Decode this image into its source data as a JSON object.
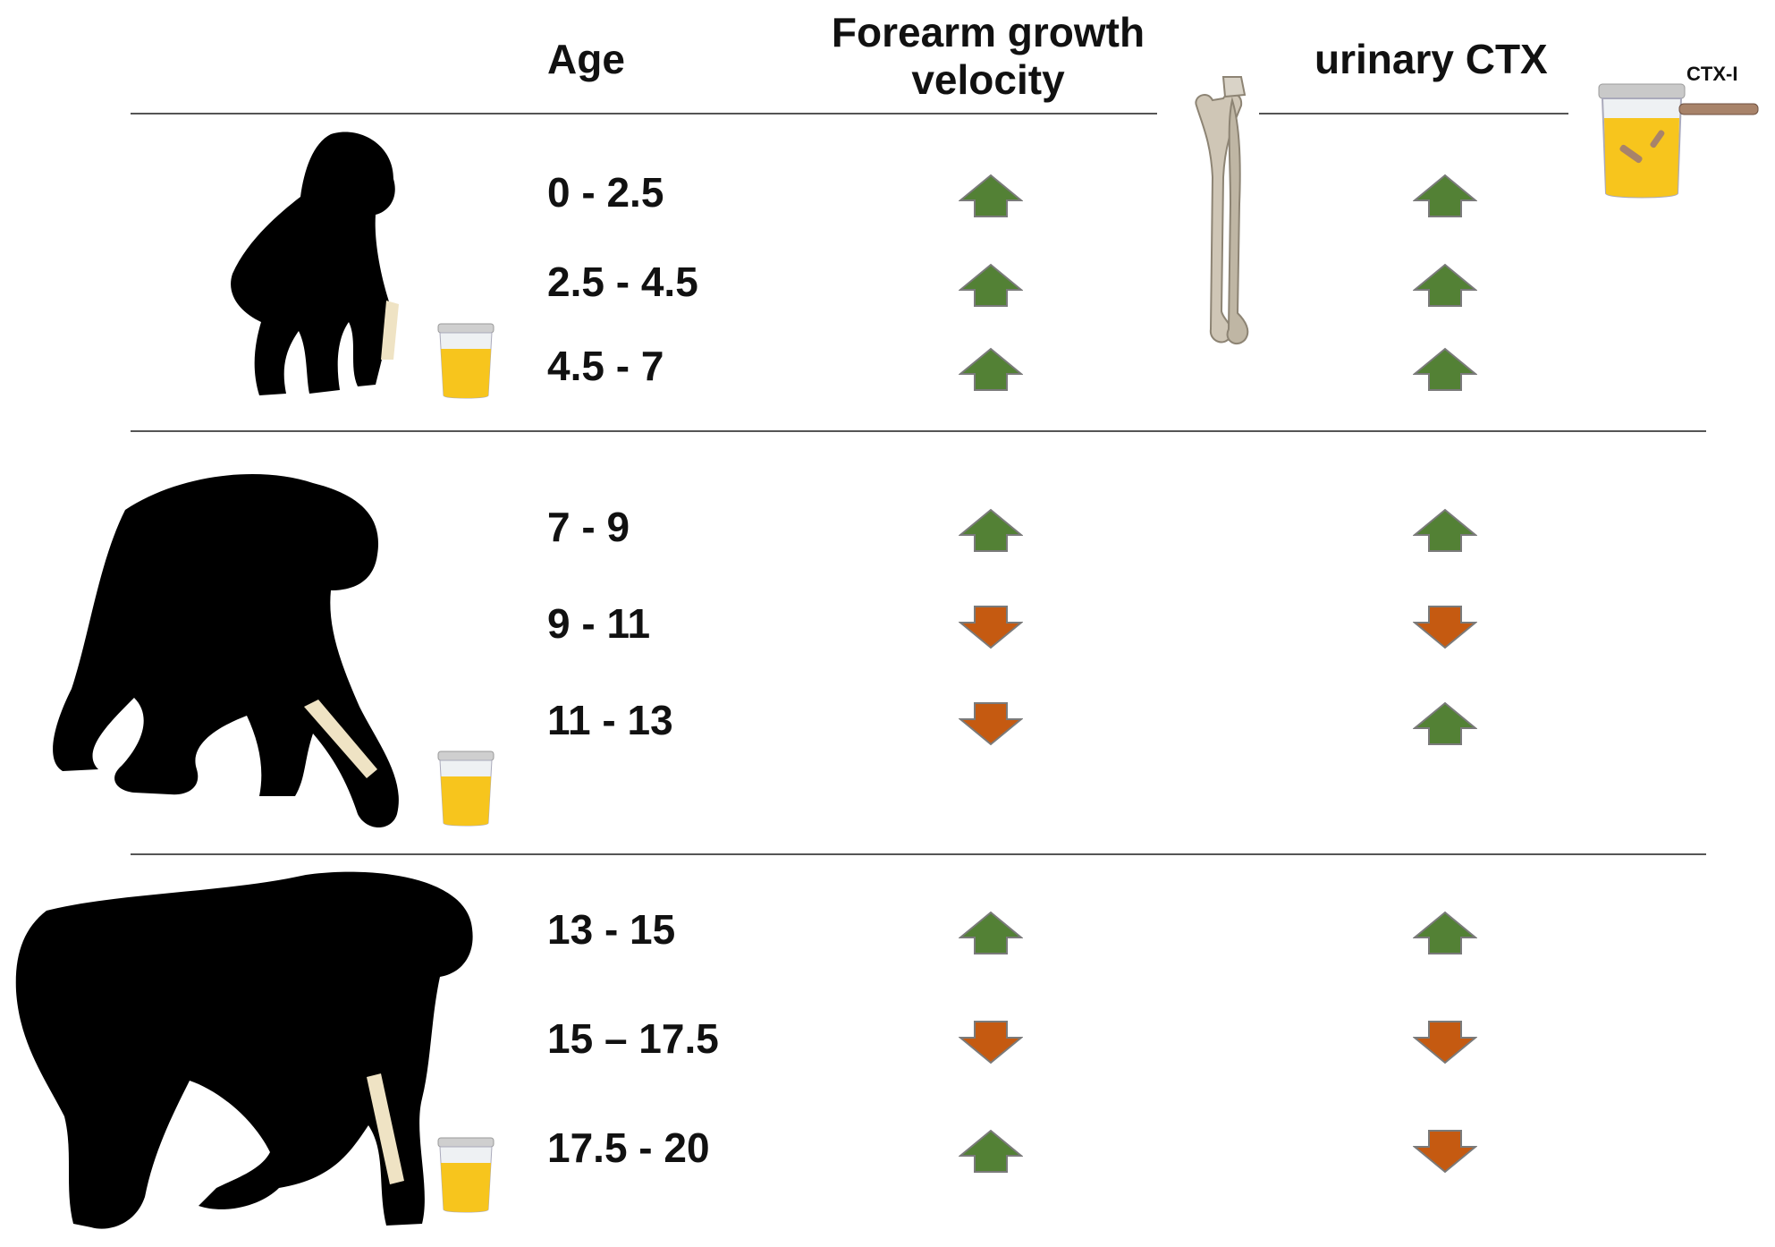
{
  "headers": {
    "age": "Age",
    "forearm_line1": "Forearm growth",
    "forearm_line2": "velocity",
    "ctx": "urinary CTX",
    "ctx_marker": "CTX-I"
  },
  "colors": {
    "up": "#538135",
    "down": "#c55a11"
  },
  "rows": [
    {
      "age": "0 - 2.5",
      "forearm": "up",
      "ctx": "up"
    },
    {
      "age": "2.5 - 4.5",
      "forearm": "up",
      "ctx": "up"
    },
    {
      "age": "4.5 - 7",
      "forearm": "up",
      "ctx": "up"
    },
    {
      "age": "7 - 9",
      "forearm": "up",
      "ctx": "up"
    },
    {
      "age": "9 - 11",
      "forearm": "down",
      "ctx": "down"
    },
    {
      "age": "11 - 13",
      "forearm": "down",
      "ctx": "up"
    },
    {
      "age": "13 - 15",
      "forearm": "up",
      "ctx": "up"
    },
    {
      "age": "15 – 17.5",
      "forearm": "down",
      "ctx": "down"
    },
    {
      "age": "17.5 - 20",
      "forearm": "up",
      "ctx": "down"
    }
  ]
}
